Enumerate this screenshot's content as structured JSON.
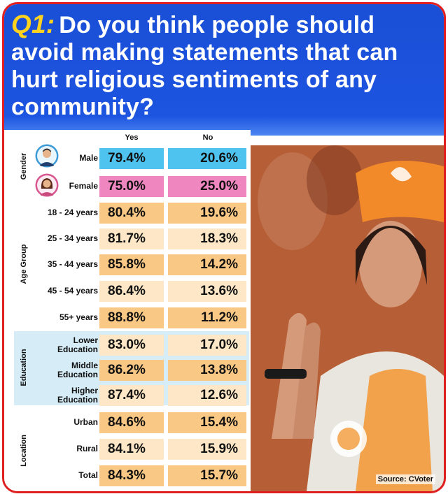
{
  "question": {
    "label": "Q1:",
    "text": "Do you think people should avoid making statements that can hurt religious sentiments of any community?"
  },
  "source": "Source: CVoter",
  "chart_data": {
    "type": "table",
    "columns": [
      "Yes",
      "No"
    ],
    "groups": [
      {
        "name": "Gender",
        "rows": [
          {
            "label": "Male",
            "yes": "79.4%",
            "no": "20.6%"
          },
          {
            "label": "Female",
            "yes": "75.0%",
            "no": "25.0%"
          }
        ]
      },
      {
        "name": "Age Group",
        "rows": [
          {
            "label": "18 - 24 years",
            "yes": "80.4%",
            "no": "19.6%"
          },
          {
            "label": "25 - 34 years",
            "yes": "81.7%",
            "no": "18.3%"
          },
          {
            "label": "35 - 44 years",
            "yes": "85.8%",
            "no": "14.2%"
          },
          {
            "label": "45 - 54 years",
            "yes": "86.4%",
            "no": "13.6%"
          },
          {
            "label": "55+ years",
            "yes": "88.8%",
            "no": "11.2%"
          }
        ]
      },
      {
        "name": "Education",
        "rows": [
          {
            "label": "Lower Education",
            "yes": "83.0%",
            "no": "17.0%"
          },
          {
            "label": "Middle Education",
            "yes": "86.2%",
            "no": "13.8%"
          },
          {
            "label": "Higher Education",
            "yes": "87.4%",
            "no": "12.6%"
          }
        ]
      },
      {
        "name": "Location",
        "rows": [
          {
            "label": "Urban",
            "yes": "84.6%",
            "no": "15.4%"
          },
          {
            "label": "Rural",
            "yes": "84.1%",
            "no": "15.9%"
          },
          {
            "label": "Total",
            "yes": "84.3%",
            "no": "15.7%"
          }
        ]
      }
    ]
  },
  "colors": {
    "male_cell": "#4ec3ef",
    "female_cell": "#ef86c0",
    "cell_dark": "#f9c884",
    "cell_light": "#fde7c6",
    "header_blue": "#1d54e0",
    "q_yellow": "#ffd21f",
    "border_red": "#e02020"
  }
}
